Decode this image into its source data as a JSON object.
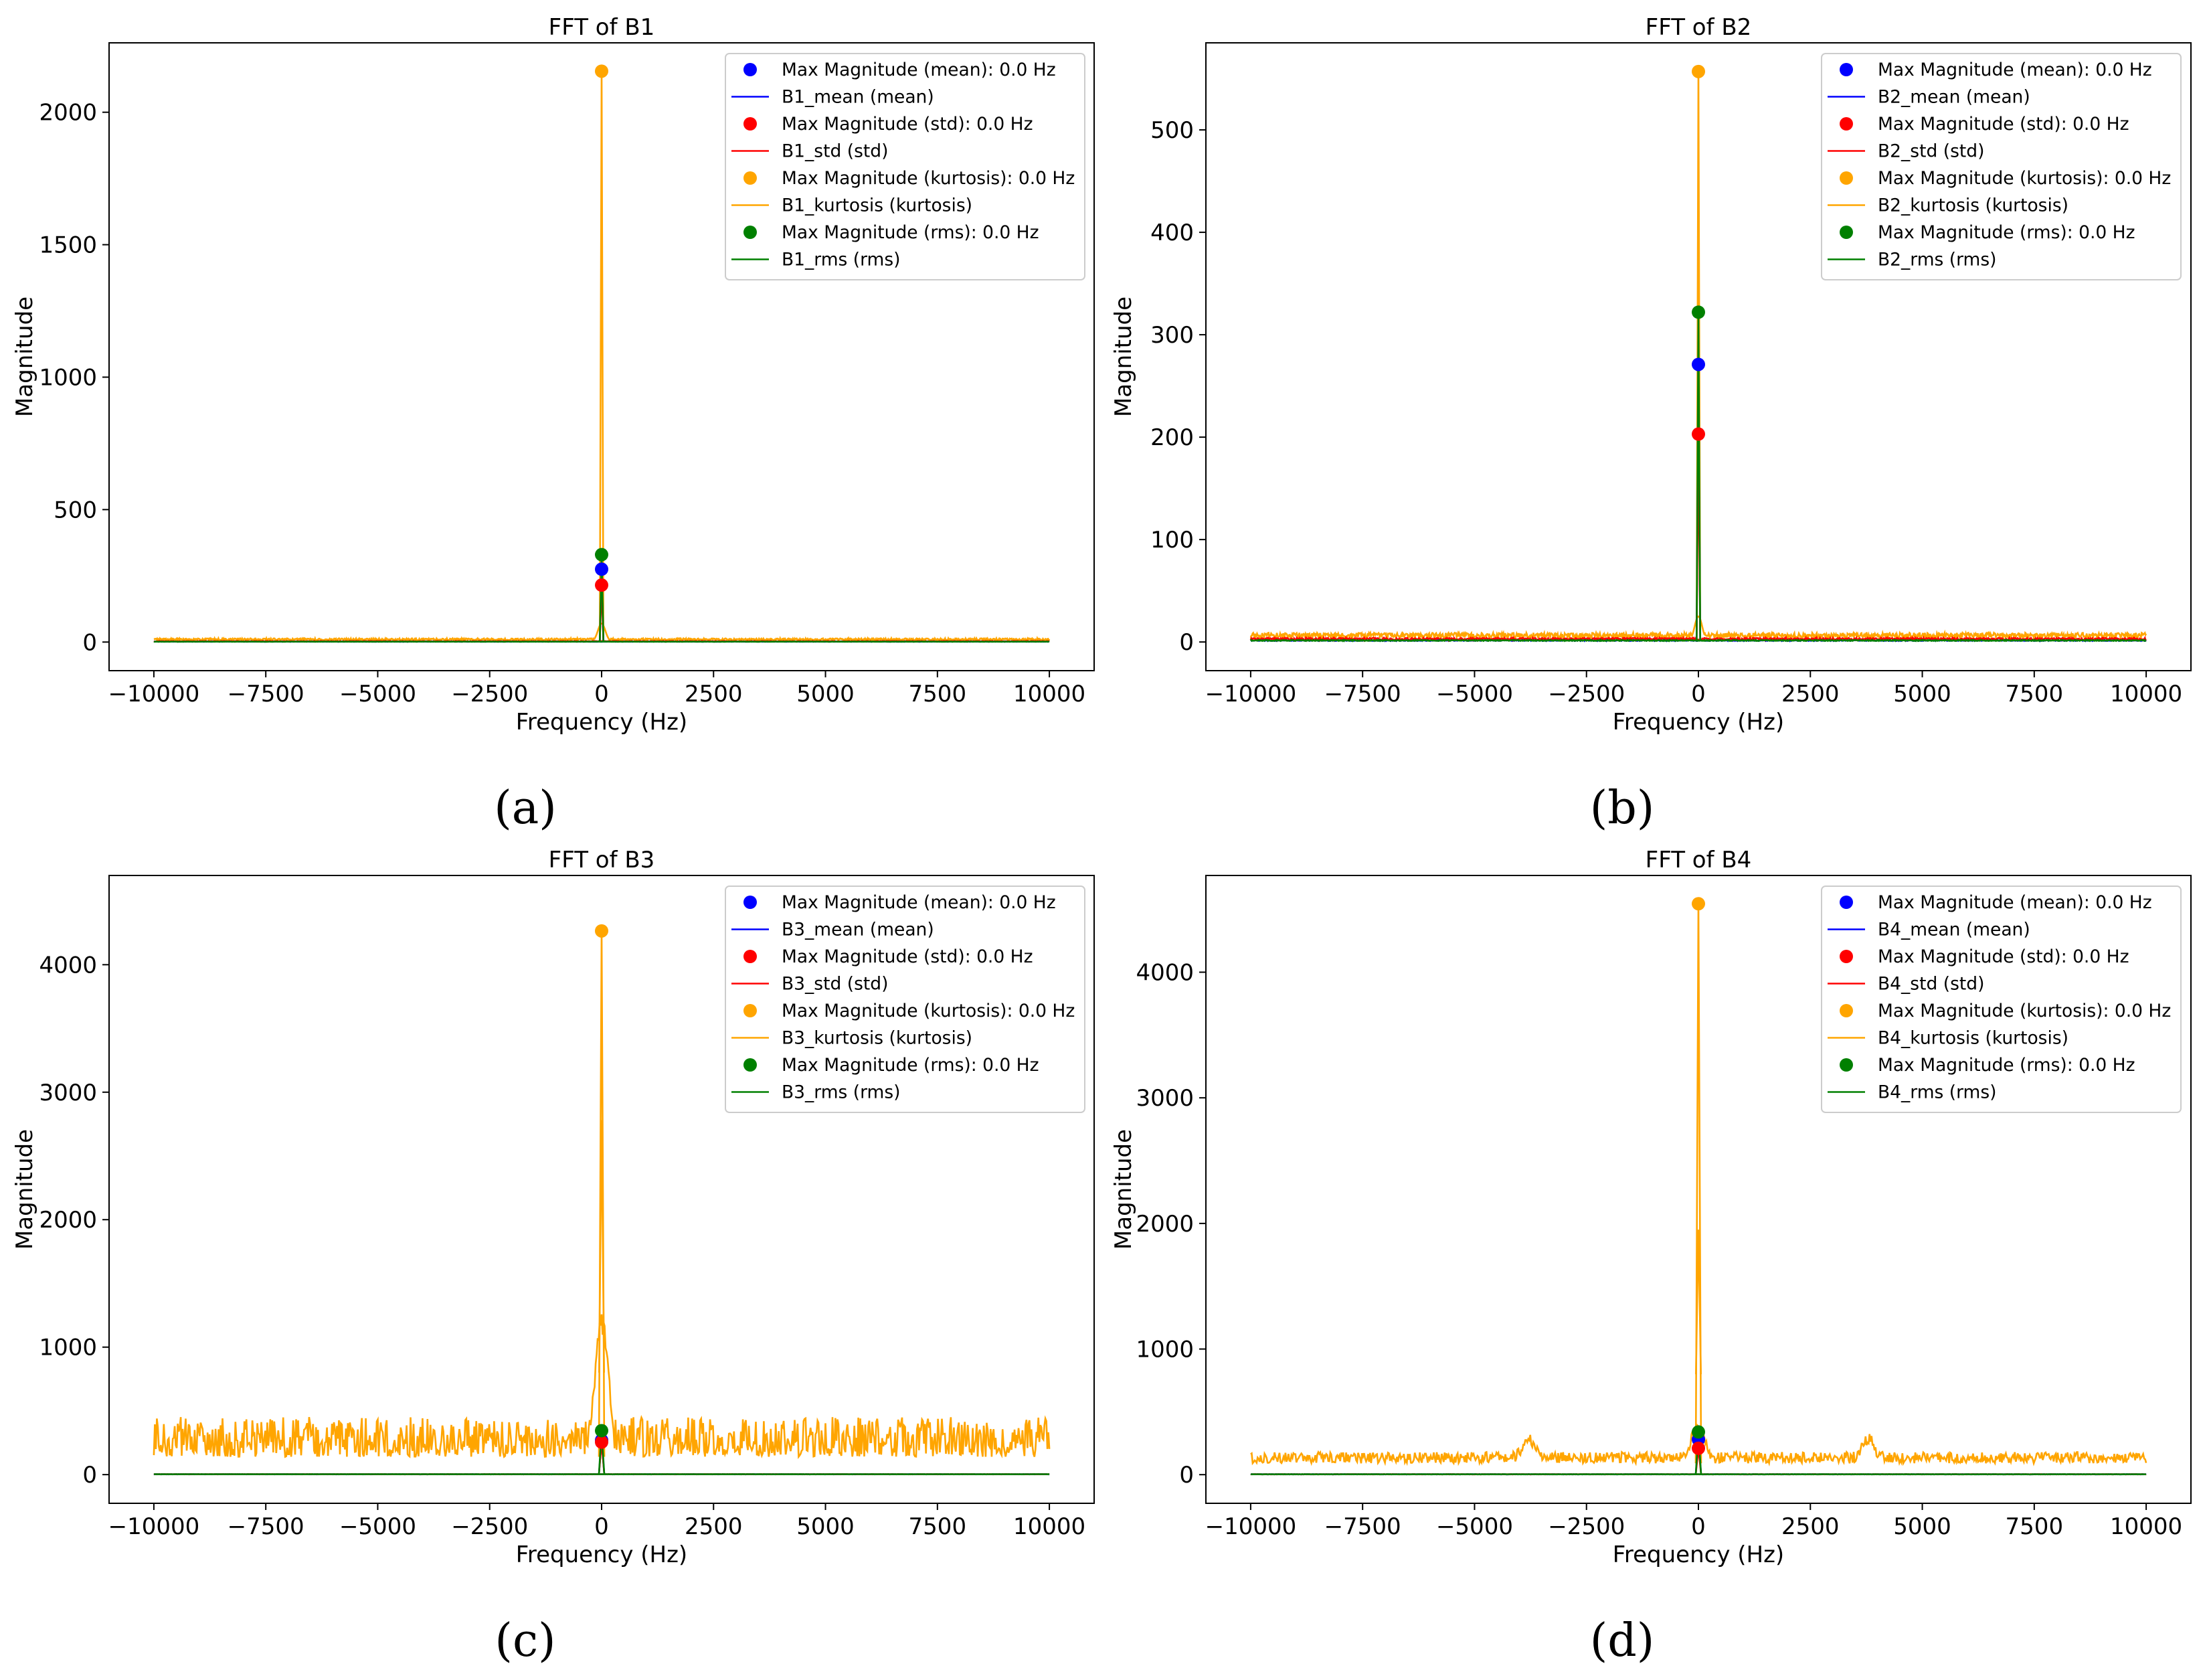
{
  "figure": {
    "panels": [
      {
        "caption": "(a)",
        "title": "FFT of B1",
        "xlabel": "Frequency (Hz)",
        "ylabel": "Magnitude",
        "x_tick_labels": [
          "−10000",
          "−7500",
          "−5000",
          "−2500",
          "0",
          "2500",
          "5000",
          "7500",
          "10000"
        ],
        "y_tick_labels": [
          "0",
          "500",
          "1000",
          "1500",
          "2000"
        ],
        "legend": [
          {
            "type": "marker",
            "label": "Max Magnitude (mean): 0.0 Hz",
            "color": "#0000ff"
          },
          {
            "type": "line",
            "label": "B1_mean (mean)",
            "color": "#0000ff"
          },
          {
            "type": "marker",
            "label": "Max Magnitude (std): 0.0 Hz",
            "color": "#ff0000"
          },
          {
            "type": "line",
            "label": "B1_std (std)",
            "color": "#ff0000"
          },
          {
            "type": "marker",
            "label": "Max Magnitude (kurtosis): 0.0 Hz",
            "color": "#ffa500"
          },
          {
            "type": "line",
            "label": "B1_kurtosis (kurtosis)",
            "color": "#ffa500"
          },
          {
            "type": "marker",
            "label": "Max Magnitude (rms): 0.0 Hz",
            "color": "#008000"
          },
          {
            "type": "line",
            "label": "B1_rms (rms)",
            "color": "#008000"
          }
        ]
      },
      {
        "caption": "(b)",
        "title": "FFT of B2",
        "xlabel": "Frequency (Hz)",
        "ylabel": "Magnitude",
        "x_tick_labels": [
          "−10000",
          "−7500",
          "−5000",
          "−2500",
          "0",
          "2500",
          "5000",
          "7500",
          "10000"
        ],
        "y_tick_labels": [
          "0",
          "100",
          "200",
          "300",
          "400",
          "500"
        ],
        "legend": [
          {
            "type": "marker",
            "label": "Max Magnitude (mean): 0.0 Hz",
            "color": "#0000ff"
          },
          {
            "type": "line",
            "label": "B2_mean (mean)",
            "color": "#0000ff"
          },
          {
            "type": "marker",
            "label": "Max Magnitude (std): 0.0 Hz",
            "color": "#ff0000"
          },
          {
            "type": "line",
            "label": "B2_std (std)",
            "color": "#ff0000"
          },
          {
            "type": "marker",
            "label": "Max Magnitude (kurtosis): 0.0 Hz",
            "color": "#ffa500"
          },
          {
            "type": "line",
            "label": "B2_kurtosis (kurtosis)",
            "color": "#ffa500"
          },
          {
            "type": "marker",
            "label": "Max Magnitude (rms): 0.0 Hz",
            "color": "#008000"
          },
          {
            "type": "line",
            "label": "B2_rms (rms)",
            "color": "#008000"
          }
        ]
      },
      {
        "caption": "(c)",
        "title": "FFT of B3",
        "xlabel": "Frequency (Hz)",
        "ylabel": "Magnitude",
        "x_tick_labels": [
          "−10000",
          "−7500",
          "−5000",
          "−2500",
          "0",
          "2500",
          "5000",
          "7500",
          "10000"
        ],
        "y_tick_labels": [
          "0",
          "1000",
          "2000",
          "3000",
          "4000"
        ],
        "legend": [
          {
            "type": "marker",
            "label": "Max Magnitude (mean): 0.0 Hz",
            "color": "#0000ff"
          },
          {
            "type": "line",
            "label": "B3_mean (mean)",
            "color": "#0000ff"
          },
          {
            "type": "marker",
            "label": "Max Magnitude (std): 0.0 Hz",
            "color": "#ff0000"
          },
          {
            "type": "line",
            "label": "B3_std (std)",
            "color": "#ff0000"
          },
          {
            "type": "marker",
            "label": "Max Magnitude (kurtosis): 0.0 Hz",
            "color": "#ffa500"
          },
          {
            "type": "line",
            "label": "B3_kurtosis (kurtosis)",
            "color": "#ffa500"
          },
          {
            "type": "marker",
            "label": "Max Magnitude (rms): 0.0 Hz",
            "color": "#008000"
          },
          {
            "type": "line",
            "label": "B3_rms (rms)",
            "color": "#008000"
          }
        ]
      },
      {
        "caption": "(d)",
        "title": "FFT of B4",
        "xlabel": "Frequency (Hz)",
        "ylabel": "Magnitude",
        "x_tick_labels": [
          "−10000",
          "−7500",
          "−5000",
          "−2500",
          "0",
          "2500",
          "5000",
          "7500",
          "10000"
        ],
        "y_tick_labels": [
          "0",
          "1000",
          "2000",
          "3000",
          "4000"
        ],
        "legend": [
          {
            "type": "marker",
            "label": "Max Magnitude (mean): 0.0 Hz",
            "color": "#0000ff"
          },
          {
            "type": "line",
            "label": "B4_mean (mean)",
            "color": "#0000ff"
          },
          {
            "type": "marker",
            "label": "Max Magnitude (std): 0.0 Hz",
            "color": "#ff0000"
          },
          {
            "type": "line",
            "label": "B4_std (std)",
            "color": "#ff0000"
          },
          {
            "type": "marker",
            "label": "Max Magnitude (kurtosis): 0.0 Hz",
            "color": "#ffa500"
          },
          {
            "type": "line",
            "label": "B4_kurtosis (kurtosis)",
            "color": "#ffa500"
          },
          {
            "type": "marker",
            "label": "Max Magnitude (rms): 0.0 Hz",
            "color": "#008000"
          },
          {
            "type": "line",
            "label": "B4_rms (rms)",
            "color": "#008000"
          }
        ]
      }
    ]
  },
  "chart_data": [
    {
      "type": "line",
      "title": "FFT of B1",
      "xlabel": "Frequency (Hz)",
      "ylabel": "Magnitude",
      "xlim": [
        -11000,
        11000
      ],
      "ylim": [
        -108,
        2262
      ],
      "xticks": [
        -10000,
        -7500,
        -5000,
        -2500,
        0,
        2500,
        5000,
        7500,
        10000
      ],
      "yticks": [
        0,
        500,
        1000,
        1500,
        2000
      ],
      "legend_position": "top-right",
      "series": [
        {
          "name": "B1_mean (mean)",
          "color": "#0000ff",
          "peak_freq": 0,
          "peak_value": 275,
          "noise_floor": 1,
          "noise_amp": 1,
          "peak_width": 40
        },
        {
          "name": "B1_std (std)",
          "color": "#ff0000",
          "peak_freq": 0,
          "peak_value": 215,
          "noise_floor": 2,
          "noise_amp": 2,
          "peak_width": 40
        },
        {
          "name": "B1_kurtosis (kurtosis)",
          "color": "#ffa500",
          "peak_freq": 0,
          "peak_value": 2155,
          "noise_floor": 6,
          "noise_amp": 8,
          "peak_width": 40
        },
        {
          "name": "B1_rms (rms)",
          "color": "#008000",
          "peak_freq": 0,
          "peak_value": 330,
          "noise_floor": 1,
          "noise_amp": 1,
          "peak_width": 40
        }
      ],
      "max_markers": [
        {
          "label": "Max Magnitude (mean): 0.0 Hz",
          "freq": 0,
          "value": 275,
          "color": "#0000ff"
        },
        {
          "label": "Max Magnitude (std): 0.0 Hz",
          "freq": 0,
          "value": 215,
          "color": "#ff0000"
        },
        {
          "label": "Max Magnitude (kurtosis): 0.0 Hz",
          "freq": 0,
          "value": 2155,
          "color": "#ffa500"
        },
        {
          "label": "Max Magnitude (rms): 0.0 Hz",
          "freq": 0,
          "value": 330,
          "color": "#008000"
        }
      ]
    },
    {
      "type": "line",
      "title": "FFT of B2",
      "xlabel": "Frequency (Hz)",
      "ylabel": "Magnitude",
      "xlim": [
        -11000,
        11000
      ],
      "ylim": [
        -28,
        585
      ],
      "xticks": [
        -10000,
        -7500,
        -5000,
        -2500,
        0,
        2500,
        5000,
        7500,
        10000
      ],
      "yticks": [
        0,
        100,
        200,
        300,
        400,
        500
      ],
      "legend_position": "top-right",
      "series": [
        {
          "name": "B2_mean (mean)",
          "color": "#0000ff",
          "peak_freq": 0,
          "peak_value": 271,
          "noise_floor": 1,
          "noise_amp": 1,
          "peak_width": 40
        },
        {
          "name": "B2_std (std)",
          "color": "#ff0000",
          "peak_freq": 0,
          "peak_value": 203,
          "noise_floor": 2,
          "noise_amp": 2,
          "peak_width": 40
        },
        {
          "name": "B2_kurtosis (kurtosis)",
          "color": "#ffa500",
          "peak_freq": 0,
          "peak_value": 557,
          "noise_floor": 4,
          "noise_amp": 5,
          "peak_width": 40
        },
        {
          "name": "B2_rms (rms)",
          "color": "#008000",
          "peak_freq": 0,
          "peak_value": 322,
          "noise_floor": 1,
          "noise_amp": 1,
          "peak_width": 40
        }
      ],
      "max_markers": [
        {
          "label": "Max Magnitude (mean): 0.0 Hz",
          "freq": 0,
          "value": 271,
          "color": "#0000ff"
        },
        {
          "label": "Max Magnitude (std): 0.0 Hz",
          "freq": 0,
          "value": 203,
          "color": "#ff0000"
        },
        {
          "label": "Max Magnitude (kurtosis): 0.0 Hz",
          "freq": 0,
          "value": 557,
          "color": "#ffa500"
        },
        {
          "label": "Max Magnitude (rms): 0.0 Hz",
          "freq": 0,
          "value": 322,
          "color": "#008000"
        }
      ]
    },
    {
      "type": "line",
      "title": "FFT of B3",
      "xlabel": "Frequency (Hz)",
      "ylabel": "Magnitude",
      "xlim": [
        -11000,
        11000
      ],
      "ylim": [
        -225,
        4700
      ],
      "xticks": [
        -10000,
        -7500,
        -5000,
        -2500,
        0,
        2500,
        5000,
        7500,
        10000
      ],
      "yticks": [
        0,
        1000,
        2000,
        3000,
        4000
      ],
      "legend_position": "top-right",
      "series": [
        {
          "name": "B3_mean (mean)",
          "color": "#0000ff",
          "peak_freq": 0,
          "peak_value": 270,
          "noise_floor": 2,
          "noise_amp": 2,
          "peak_width": 60
        },
        {
          "name": "B3_std (std)",
          "color": "#ff0000",
          "peak_freq": 0,
          "peak_value": 255,
          "noise_floor": 2,
          "noise_amp": 2,
          "peak_width": 60
        },
        {
          "name": "B3_kurtosis (kurtosis)",
          "color": "#ffa500",
          "peak_freq": 0,
          "peak_value": 4265,
          "noise_floor": 140,
          "noise_amp": 260,
          "peak_width": 60
        },
        {
          "name": "B3_rms (rms)",
          "color": "#008000",
          "peak_freq": 0,
          "peak_value": 345,
          "noise_floor": 2,
          "noise_amp": 2,
          "peak_width": 60
        }
      ],
      "max_markers": [
        {
          "label": "Max Magnitude (mean): 0.0 Hz",
          "freq": 0,
          "value": 270,
          "color": "#0000ff"
        },
        {
          "label": "Max Magnitude (std): 0.0 Hz",
          "freq": 0,
          "value": 255,
          "color": "#ff0000"
        },
        {
          "label": "Max Magnitude (kurtosis): 0.0 Hz",
          "freq": 0,
          "value": 4265,
          "color": "#ffa500"
        },
        {
          "label": "Max Magnitude (rms): 0.0 Hz",
          "freq": 0,
          "value": 345,
          "color": "#008000"
        }
      ]
    },
    {
      "type": "line",
      "title": "FFT of B4",
      "xlabel": "Frequency (Hz)",
      "ylabel": "Magnitude",
      "xlim": [
        -11000,
        11000
      ],
      "ylim": [
        -228,
        4770
      ],
      "xticks": [
        -10000,
        -7500,
        -5000,
        -2500,
        0,
        2500,
        5000,
        7500,
        10000
      ],
      "yticks": [
        0,
        1000,
        2000,
        3000,
        4000
      ],
      "legend_position": "top-right",
      "series": [
        {
          "name": "B4_mean (mean)",
          "color": "#0000ff",
          "peak_freq": 0,
          "peak_value": 280,
          "noise_floor": 2,
          "noise_amp": 2,
          "peak_width": 60
        },
        {
          "name": "B4_std (std)",
          "color": "#ff0000",
          "peak_freq": 0,
          "peak_value": 210,
          "noise_floor": 2,
          "noise_amp": 2,
          "peak_width": 60
        },
        {
          "name": "B4_kurtosis (kurtosis)",
          "color": "#ffa500",
          "peak_freq": 0,
          "peak_value": 4545,
          "noise_floor": 90,
          "noise_amp": 90,
          "peak_width": 60
        },
        {
          "name": "B4_rms (rms)",
          "color": "#008000",
          "peak_freq": 0,
          "peak_value": 340,
          "noise_floor": 2,
          "noise_amp": 2,
          "peak_width": 60
        }
      ],
      "max_markers": [
        {
          "label": "Max Magnitude (mean): 0.0 Hz",
          "freq": 0,
          "value": 280,
          "color": "#0000ff"
        },
        {
          "label": "Max Magnitude (std): 0.0 Hz",
          "freq": 0,
          "value": 210,
          "color": "#ff0000"
        },
        {
          "label": "Max Magnitude (kurtosis): 0.0 Hz",
          "freq": 0,
          "value": 4545,
          "color": "#ffa500"
        },
        {
          "label": "Max Magnitude (rms): 0.0 Hz",
          "freq": 0,
          "value": 340,
          "color": "#008000"
        }
      ]
    }
  ]
}
